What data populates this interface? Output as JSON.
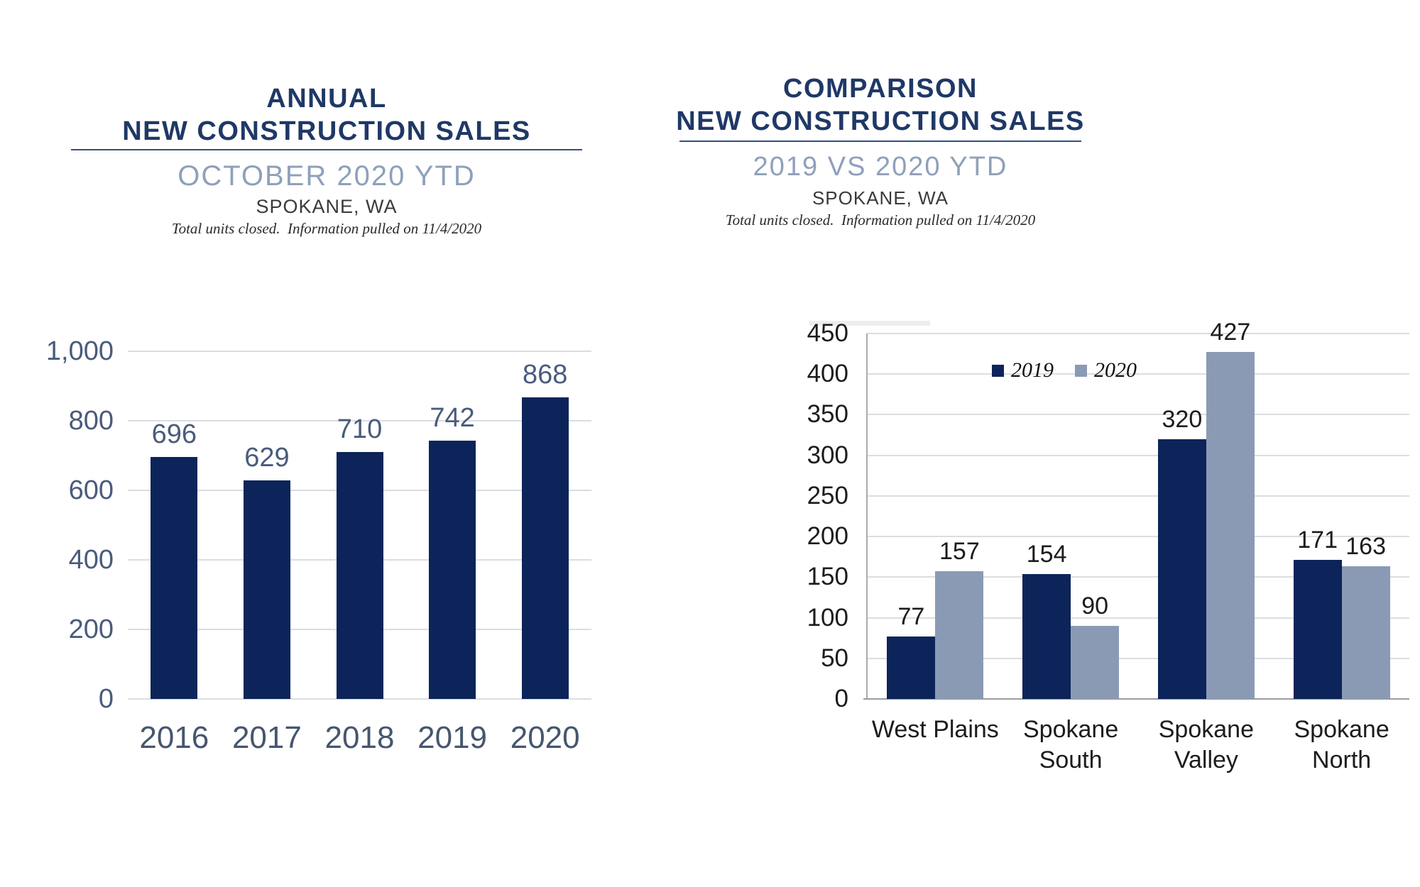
{
  "colors": {
    "title_navy": "#1F3866",
    "underline": "#31507F",
    "subtitle_gray_blue": "#8FA0BA",
    "location_text": "#3A3A3A",
    "note_text": "#2A2A2A",
    "bar_navy": "#0C2459",
    "bar_gray_blue": "#8B9AB4",
    "left_axis_text": "#4A5B7C",
    "right_axis_text": "#1C1C1C",
    "gridline": "#DBDDE2",
    "axis_line": "#ABABAB"
  },
  "chart_data": [
    {
      "type": "bar",
      "title_lines": [
        "ANNUAL",
        "NEW CONSTRUCTION SALES"
      ],
      "subtitle": "OCTOBER 2020 YTD",
      "location": "SPOKANE, WA",
      "note": "Total units closed.  Information pulled on 11/4/2020",
      "categories": [
        "2016",
        "2017",
        "2018",
        "2019",
        "2020"
      ],
      "values": [
        696,
        629,
        710,
        742,
        868
      ],
      "ylim": [
        0,
        1000
      ],
      "ytick_step": 200,
      "ytick_labels": [
        "0",
        "200",
        "400",
        "600",
        "800",
        "1,000"
      ],
      "grid": true,
      "bar_color": "#0C2459",
      "text_color": "#4A5B7C"
    },
    {
      "type": "grouped-bar",
      "title_lines": [
        "COMPARISON",
        "NEW CONSTRUCTION SALES"
      ],
      "subtitle": "2019 VS 2020 YTD",
      "location": "SPOKANE, WA",
      "note": "Total units closed.  Information pulled on 11/4/2020",
      "categories": [
        "West Plains",
        "Spokane\nSouth",
        "Spokane\nValley",
        "Spokane\nNorth"
      ],
      "series": [
        {
          "name": "2019",
          "values": [
            77,
            154,
            320,
            171
          ],
          "color": "#0C2459"
        },
        {
          "name": "2020",
          "values": [
            157,
            90,
            427,
            163
          ],
          "color": "#8B9AB4"
        }
      ],
      "ylim": [
        0,
        450
      ],
      "ytick_step": 50,
      "ytick_labels": [
        "0",
        "50",
        "100",
        "150",
        "200",
        "250",
        "300",
        "350",
        "400",
        "450"
      ],
      "grid": true,
      "legend_position": "top-inside",
      "text_color": "#1C1C1C"
    }
  ]
}
